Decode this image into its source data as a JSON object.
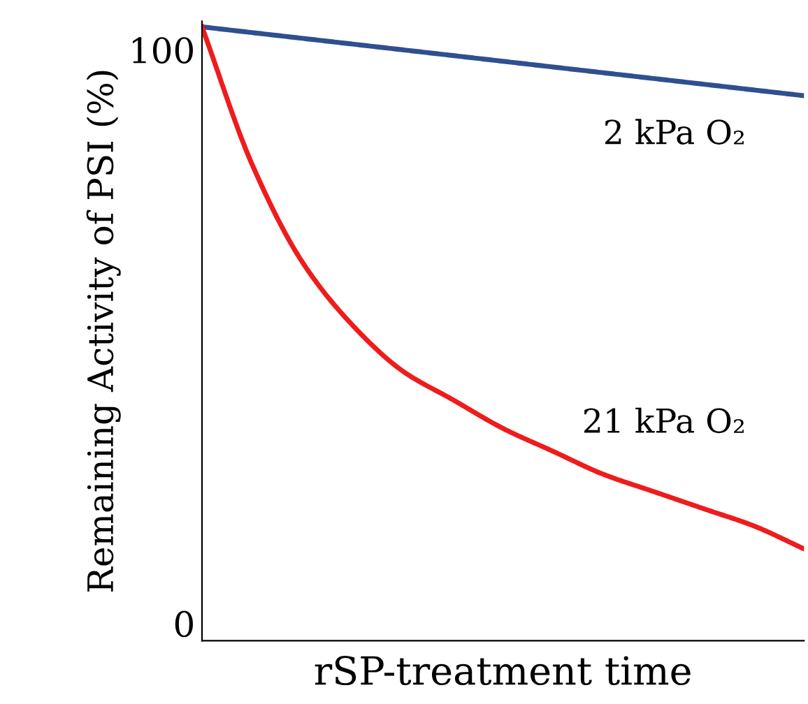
{
  "chart_data": {
    "type": "line",
    "xlabel": "rSP-treatment time",
    "ylabel": "Remaining Activity of PSI (%)",
    "categories": [
      null,
      null,
      null,
      null,
      null,
      null,
      null,
      null,
      null,
      null,
      null,
      null,
      null
    ],
    "series": [
      {
        "name": "2 kPa O₂",
        "color": "#2f4f8f",
        "values": [
          104,
          103,
          102,
          101,
          100,
          99,
          98,
          97,
          96,
          95,
          94,
          93,
          92
        ]
      },
      {
        "name": "21 kPa O₂",
        "color": "#ee1c1c",
        "values": [
          104,
          80,
          63,
          52,
          44,
          39,
          34,
          30,
          26,
          23,
          20,
          17,
          13
        ]
      }
    ],
    "ylim": [
      -3,
      105
    ],
    "yticks": [
      0,
      100
    ],
    "grid": false,
    "marker": "none",
    "line_style": "solid"
  }
}
